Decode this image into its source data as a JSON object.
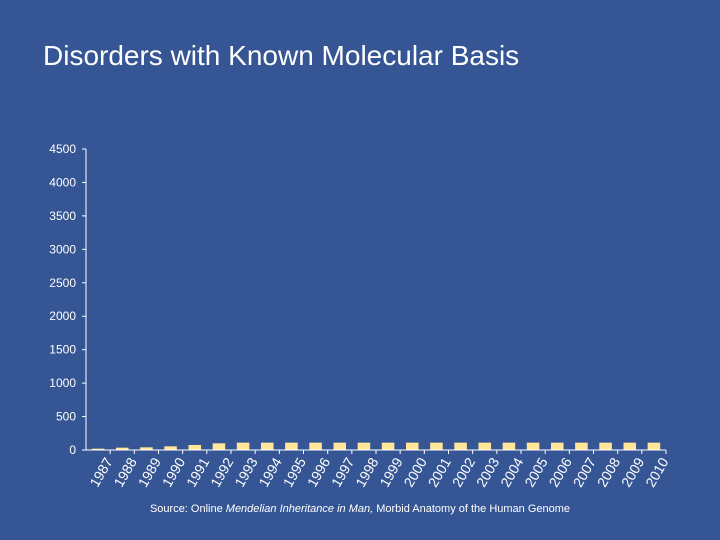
{
  "title": "Disorders with Known Molecular Basis",
  "source": {
    "prefix": "Source: Online ",
    "italic": "Mendelian Inheritance in Man,",
    "suffix": " Morbid Anatomy of the Human Genome"
  },
  "colors": {
    "background": "#355594",
    "bar": "#FFE699",
    "axis": "#ffffff"
  },
  "chart_data": {
    "type": "bar",
    "title": "Disorders with Known Molecular Basis",
    "xlabel": "",
    "ylabel": "",
    "ylim": [
      0,
      4500
    ],
    "yticks": [
      0,
      500,
      1000,
      1500,
      2000,
      2500,
      3000,
      3500,
      4000,
      4500
    ],
    "grid": false,
    "categories": [
      "1987",
      "1988",
      "1989",
      "1990",
      "1991",
      "1992",
      "1993",
      "1994",
      "1995",
      "1996",
      "1997",
      "1998",
      "1999",
      "2000",
      "2001",
      "2002",
      "2003",
      "2004",
      "2005",
      "2006",
      "2007",
      "2008",
      "2009",
      "2010"
    ],
    "values": [
      20,
      35,
      40,
      55,
      75,
      100,
      110,
      110,
      110,
      110,
      110,
      110,
      110,
      110,
      110,
      110,
      110,
      110,
      110,
      110,
      110,
      110,
      110,
      110
    ]
  }
}
